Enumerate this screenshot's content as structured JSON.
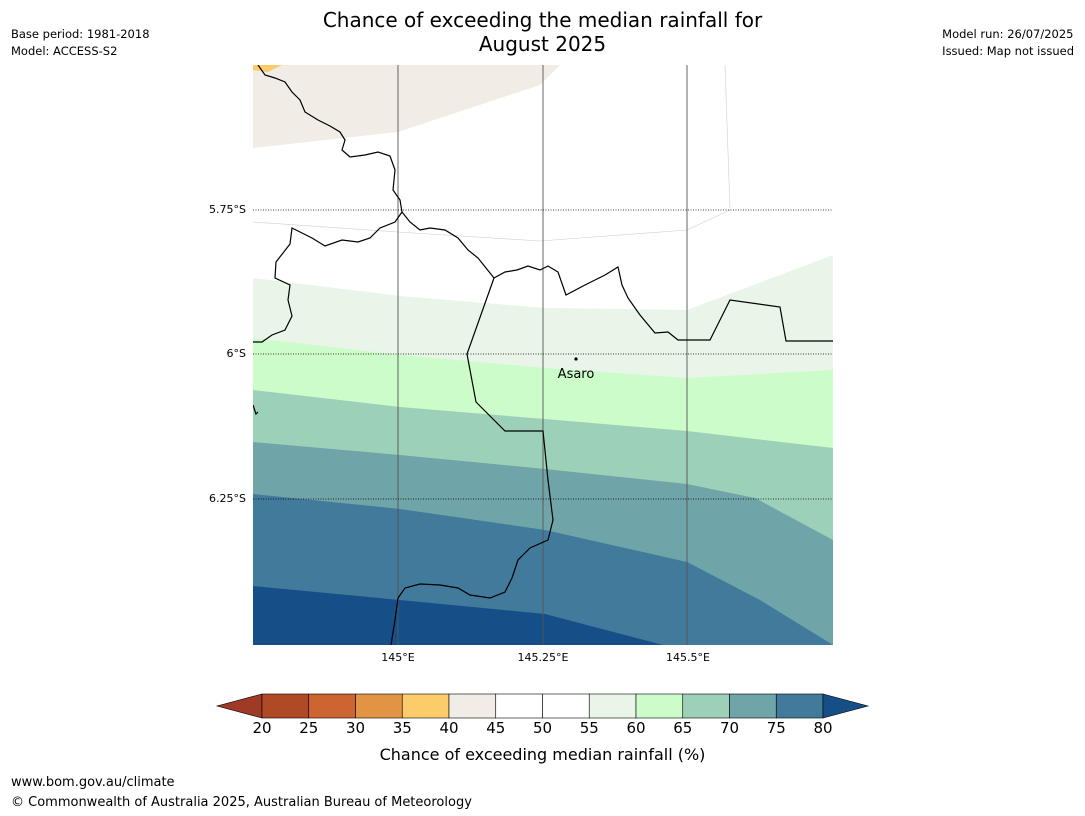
{
  "title_line1": "Chance of exceeding the median rainfall for",
  "title_line2": "August 2025",
  "meta_left": {
    "base_period": "Base period: 1981-2018",
    "model": "Model: ACCESS-S2"
  },
  "meta_right": {
    "model_run": "Model run: 26/07/2025",
    "issued": "Issued: Map not issued"
  },
  "map": {
    "lat_labels": [
      "5.75°S",
      "6°S",
      "6.25°S"
    ],
    "lon_labels": [
      "145°E",
      "145.25°E",
      "145.5°E"
    ],
    "place": {
      "name": "Asaro"
    }
  },
  "colorbar": {
    "title": "Chance of exceeding median rainfall (%)",
    "ticks": [
      "20",
      "25",
      "30",
      "35",
      "40",
      "45",
      "50",
      "55",
      "60",
      "65",
      "70",
      "75",
      "80"
    ],
    "colors": [
      "#9e3a26",
      "#b04a26",
      "#cc6531",
      "#e19444",
      "#fdcc6a",
      "#f1ece6",
      "#ffffff",
      "#ffffff",
      "#e8f5e8",
      "#ccfcca",
      "#9dd0b8",
      "#6fa4a8",
      "#417a9b",
      "#164f88"
    ]
  },
  "footer": {
    "url": "www.bom.gov.au/climate",
    "copyright": "© Commonwealth of Australia 2025, Australian Bureau of Meteorology"
  }
}
